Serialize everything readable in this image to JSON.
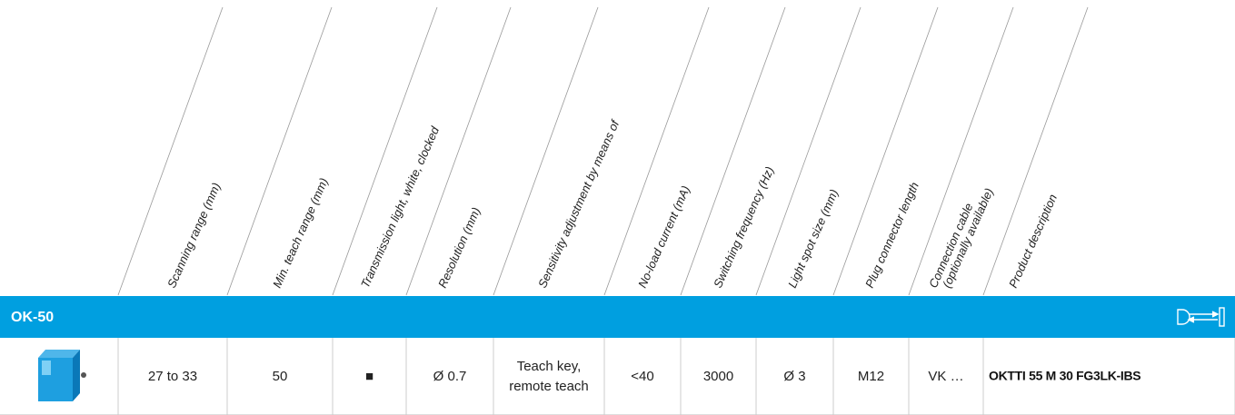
{
  "headers": [
    [
      "Scanning range (mm)"
    ],
    [
      "Min. teach range (mm)"
    ],
    [
      "Transmission light, white, clocked"
    ],
    [
      "Resolution (mm)"
    ],
    [
      "Sensitivity adjustment by means of"
    ],
    [
      "No-load current (mA)"
    ],
    [
      "Switching frequency (Hz)"
    ],
    [
      "Light spot size (mm)"
    ],
    [
      "Plug connector length"
    ],
    [
      "Connection cable",
      "(optionally available)"
    ],
    [
      "Product description"
    ]
  ],
  "group": {
    "title": "OK-50"
  },
  "row": [
    "27 to 33",
    "50",
    "■",
    "Ø 0.7",
    [
      "Teach key,",
      "remote teach"
    ],
    "<40",
    "3000",
    "Ø 3",
    "M12",
    "VK …",
    "OKTTI 55 M 30 FG3LK-IBS"
  ]
}
